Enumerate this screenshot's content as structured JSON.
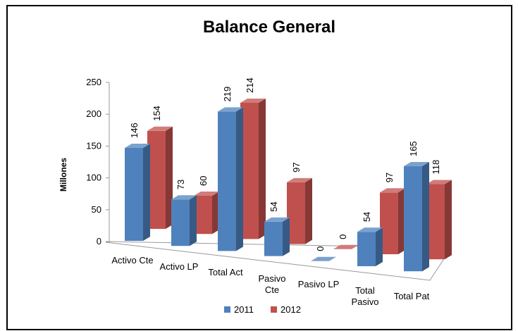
{
  "chart_data": {
    "type": "bar3d",
    "title": "Balance General",
    "ylabel": "Millones",
    "categories": [
      "Activo Cte",
      "Activo LP",
      "Total Act",
      "Pasivo Cte",
      "Pasivo LP",
      "Total Pasivo",
      "Total Pat"
    ],
    "series": [
      {
        "name": "2011",
        "color": "#4f81bd",
        "values": [
          146,
          73,
          219,
          54,
          0,
          54,
          165
        ]
      },
      {
        "name": "2012",
        "color": "#c0504d",
        "values": [
          154,
          60,
          214,
          97,
          0,
          97,
          118
        ]
      }
    ],
    "ylim": [
      0,
      250
    ],
    "yticks": [
      0,
      50,
      100,
      150,
      200,
      250
    ],
    "grid": false,
    "legend": "bottom"
  }
}
